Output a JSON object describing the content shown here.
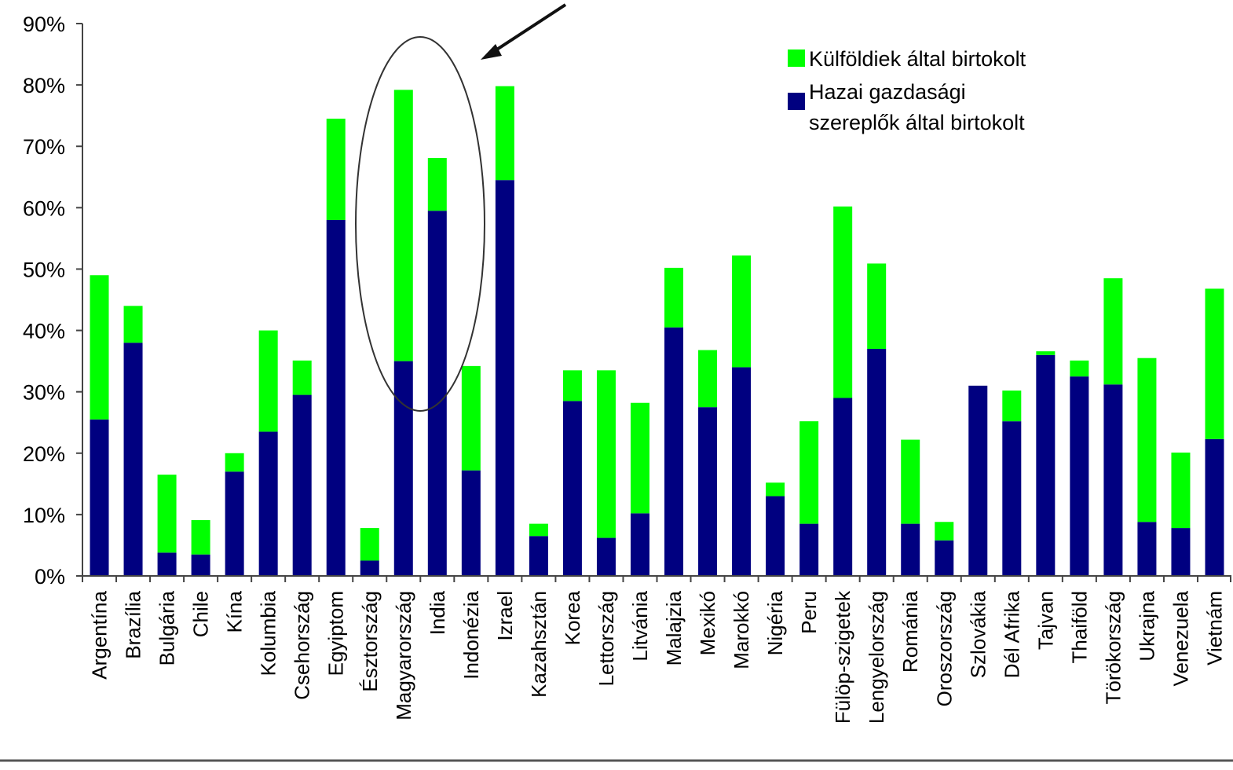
{
  "chart_data": {
    "type": "bar",
    "stacked": true,
    "categories": [
      "Argentína",
      "Brazília",
      "Bulgária",
      "Chile",
      "Kína",
      "Kolumbia",
      "Csehország",
      "Egyiptom",
      "Észtország",
      "Magyarország",
      "India",
      "Indonézia",
      "Izrael",
      "Kazahsztán",
      "Korea",
      "Lettország",
      "Litvánia",
      "Malajzia",
      "Mexikó",
      "Marokkó",
      "Nigéria",
      "Peru",
      "Fülöp-szigetek",
      "Lengyelország",
      "Románia",
      "Oroszország",
      "Szlovákia",
      "Dél Afrika",
      "Tajvan",
      "Thaiföld",
      "Törökország",
      "Ukrajna",
      "Venezuela",
      "Vietnám"
    ],
    "series": [
      {
        "name": "Hazai gazdasági szereplők által birtokolt",
        "color": "#000080",
        "values": [
          25.5,
          38,
          3.8,
          3.5,
          17,
          23.5,
          29.5,
          58,
          2.5,
          35,
          59.5,
          17.2,
          64.5,
          6.5,
          28.5,
          6.2,
          10.2,
          40.5,
          27.5,
          34,
          13,
          8.5,
          29,
          37,
          8.5,
          5.8,
          31,
          25.2,
          36,
          32.5,
          31.2,
          8.8,
          7.8,
          22.3
        ]
      },
      {
        "name": "Külföldiek által birtokolt",
        "color": "#00ff00",
        "values": [
          23.5,
          6,
          12.7,
          5.6,
          3,
          16.5,
          5.6,
          16.5,
          5.3,
          44.2,
          8.6,
          17,
          15.3,
          2,
          5,
          27.3,
          18,
          9.7,
          9.3,
          18.2,
          2.2,
          16.7,
          31.2,
          13.9,
          13.7,
          3,
          0,
          5,
          0.6,
          2.6,
          17.3,
          26.7,
          12.3,
          24.5
        ]
      }
    ],
    "yticks": [
      "0%",
      "10%",
      "20%",
      "30%",
      "40%",
      "50%",
      "60%",
      "70%",
      "80%",
      "90%"
    ],
    "ylim": [
      0,
      90
    ],
    "legend_position": "top-right",
    "grid": false
  },
  "legend": {
    "foreign": "Külföldiek által birtokolt",
    "domestic_line1": "Hazai gazdasági",
    "domestic_line2": "szereplők által birtokolt"
  }
}
